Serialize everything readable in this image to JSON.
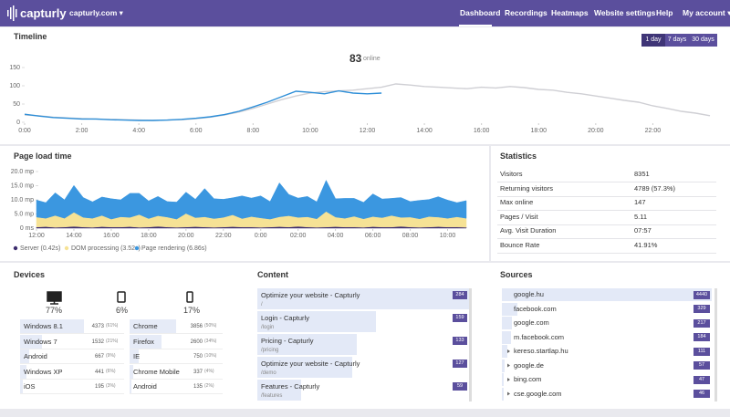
{
  "header": {
    "logo": "capturly",
    "site": "capturly.com ▾",
    "nav": [
      "Dashboard",
      "Recordings",
      "Heatmaps",
      "Website settings",
      "Help",
      "My account ▾"
    ]
  },
  "timeline": {
    "ranges": [
      "1 day",
      "7 days",
      "30 days"
    ],
    "online_count": "83",
    "online_label": "online"
  },
  "chart_data": [
    {
      "type": "line",
      "title": "Timeline",
      "x": [
        0,
        0.5,
        1,
        1.5,
        2,
        2.5,
        3,
        3.5,
        4,
        4.5,
        5,
        5.5,
        6,
        6.5,
        7,
        7.5,
        8,
        8.5,
        9,
        9.5,
        10,
        10.5,
        11,
        11.5,
        12,
        12.5,
        13,
        13.5,
        14,
        14.5,
        15,
        15.5,
        16,
        16.5,
        17,
        17.5,
        18,
        18.5,
        19,
        19.5,
        20,
        20.5,
        21,
        21.5,
        22,
        22.5,
        23,
        23.5,
        24
      ],
      "series": [
        {
          "color": "#cfcfd4",
          "values": [
            20,
            18,
            14,
            12,
            10,
            9,
            8,
            7,
            6,
            5,
            6,
            7,
            10,
            14,
            20,
            28,
            38,
            50,
            62,
            72,
            80,
            84,
            86,
            88,
            92,
            96,
            105,
            102,
            98,
            96,
            94,
            92,
            96,
            94,
            98,
            95,
            90,
            88,
            82,
            78,
            72,
            66,
            60,
            55,
            45,
            38,
            30,
            25,
            18
          ]
        },
        {
          "color": "#2f8fd8",
          "values": [
            22,
            17,
            13,
            11,
            9,
            9,
            7,
            6,
            5,
            5,
            6,
            8,
            11,
            15,
            21,
            30,
            42,
            55,
            70,
            85,
            82,
            78,
            86,
            80,
            78,
            80,
            null,
            null,
            null,
            null,
            null,
            null,
            null,
            null,
            null,
            null,
            null,
            null,
            null,
            null,
            null,
            null,
            null,
            null,
            null,
            null,
            null,
            null,
            null
          ]
        }
      ],
      "xlim": [
        0,
        24
      ],
      "xticks": [
        {
          "value": 0,
          "label": "0:00"
        },
        {
          "value": 2,
          "label": "2:00"
        },
        {
          "value": 4,
          "label": "4:00"
        },
        {
          "value": 6,
          "label": "6:00"
        },
        {
          "value": 8,
          "label": "8:00"
        },
        {
          "value": 10,
          "label": "10:00"
        },
        {
          "value": 12,
          "label": "12:00"
        },
        {
          "value": 14,
          "label": "14:00"
        },
        {
          "value": 16,
          "label": "16:00"
        },
        {
          "value": 18,
          "label": "18:00"
        },
        {
          "value": 20,
          "label": "20:00"
        },
        {
          "value": 22,
          "label": "22:00"
        }
      ],
      "ylim": [
        0,
        150
      ],
      "yticks": [
        0,
        50,
        100,
        150
      ],
      "grid": false
    },
    {
      "type": "stacked_area",
      "title": "Page load time",
      "x": [
        0,
        0.5,
        1,
        1.5,
        2,
        2.5,
        3,
        3.5,
        4,
        4.5,
        5,
        5.5,
        6,
        6.5,
        7,
        7.5,
        8,
        8.5,
        9,
        9.5,
        10,
        10.5,
        11,
        11.5,
        12,
        12.5,
        13,
        13.5,
        14,
        14.5,
        15,
        15.5,
        16,
        16.5,
        17,
        17.5,
        18,
        18.5,
        19,
        19.5,
        20,
        20.5,
        21,
        21.5,
        22,
        22.5,
        23
      ],
      "series": [
        {
          "name": "Server (0.42s)",
          "color": "#3d2d6e",
          "values": [
            0.4,
            0.5,
            0.3,
            0.4,
            0.6,
            0.4,
            0.3,
            0.5,
            0.4,
            0.4,
            0.5,
            0.3,
            0.4,
            0.6,
            0.4,
            0.3,
            0.4,
            0.5,
            0.4,
            0.3,
            0.4,
            0.5,
            0.4,
            0.4,
            0.3,
            0.4,
            0.5,
            0.4,
            0.6,
            0.4,
            0.3,
            0.4,
            0.5,
            0.4,
            0.4,
            0.3,
            0.5,
            0.4,
            0.4,
            0.6,
            0.4,
            0.3,
            0.4,
            0.5,
            0.4,
            0.4,
            0.3
          ]
        },
        {
          "name": "DOM processing (3.52s)",
          "color": "#f6e295",
          "values": [
            3.5,
            3.0,
            4.2,
            3.1,
            5.0,
            3.4,
            3.2,
            4.0,
            2.8,
            3.6,
            3.3,
            4.5,
            3.0,
            3.8,
            3.5,
            2.9,
            4.8,
            3.2,
            3.6,
            3.1,
            3.4,
            4.2,
            3.0,
            3.7,
            3.3,
            2.8,
            3.5,
            4.0,
            3.2,
            3.6,
            3.0,
            5.5,
            3.4,
            3.1,
            3.8,
            3.0,
            3.6,
            3.3,
            4.1,
            3.2,
            3.5,
            3.0,
            3.7,
            3.4,
            3.1,
            3.6,
            3.2
          ]
        },
        {
          "name": "Page rendering (6.86s)",
          "color": "#3b97e0",
          "values": [
            6.0,
            5.5,
            8.0,
            6.5,
            9.5,
            7.0,
            5.8,
            6.5,
            7.2,
            6.0,
            8.5,
            7.5,
            6.2,
            6.8,
            5.5,
            6.0,
            7.5,
            6.5,
            10.0,
            7.0,
            6.4,
            6.0,
            8.0,
            6.5,
            7.8,
            6.2,
            12.0,
            7.5,
            6.8,
            7.2,
            6.0,
            11.0,
            6.5,
            7.0,
            6.3,
            5.8,
            8.0,
            6.6,
            6.0,
            7.0,
            5.5,
            6.5,
            6.0,
            7.2,
            6.4,
            5.0,
            6.2
          ]
        }
      ],
      "xlim": [
        0,
        23
      ],
      "xticks": [
        {
          "value": 0,
          "label": "12:00"
        },
        {
          "value": 2,
          "label": "14:00"
        },
        {
          "value": 4,
          "label": "16:00"
        },
        {
          "value": 6,
          "label": "18:00"
        },
        {
          "value": 8,
          "label": "20:00"
        },
        {
          "value": 10,
          "label": "22:00"
        },
        {
          "value": 12,
          "label": "0:00"
        },
        {
          "value": 14,
          "label": "02:00"
        },
        {
          "value": 16,
          "label": "04:00"
        },
        {
          "value": 18,
          "label": "06:00"
        },
        {
          "value": 20,
          "label": "08:00"
        },
        {
          "value": 22,
          "label": "10:00"
        }
      ],
      "ylim": [
        0,
        20
      ],
      "yticks": [
        {
          "value": 0,
          "label": "0 ms"
        },
        {
          "value": 5,
          "label": "5.0 mp"
        },
        {
          "value": 10,
          "label": "10.0 mp"
        },
        {
          "value": 15,
          "label": "15.0 mp"
        },
        {
          "value": 20,
          "label": "20.0 mp"
        }
      ],
      "grid": false
    }
  ],
  "statistics": {
    "title": "Statistics",
    "rows": [
      [
        "Visitors",
        "8351"
      ],
      [
        "Returning visitors",
        "4789 (57.3%)"
      ],
      [
        "Max online",
        "147"
      ],
      [
        "Pages / Visit",
        "5.11"
      ],
      [
        "Avg. Visit Duration",
        "07:57"
      ],
      [
        "Bounce Rate",
        "41.91%"
      ]
    ]
  },
  "devices": {
    "title": "Devices",
    "shares": [
      "77%",
      "6%",
      "17%"
    ],
    "os": [
      {
        "name": "Windows 8.1",
        "count": 4373,
        "share": 61,
        "share_label": "(61%)"
      },
      {
        "name": "Windows 7",
        "count": 1532,
        "share": 21,
        "share_label": "(21%)"
      },
      {
        "name": "Android",
        "count": 667,
        "share": 9,
        "share_label": "(9%)"
      },
      {
        "name": "Windows XP",
        "count": 441,
        "share": 6,
        "share_label": "(6%)"
      },
      {
        "name": "iOS",
        "count": 195,
        "share": 3,
        "share_label": "(3%)"
      }
    ],
    "browsers": [
      {
        "name": "Chrome",
        "count": 3856,
        "share": 50,
        "share_label": "(50%)"
      },
      {
        "name": "Firefox",
        "count": 2600,
        "share": 34,
        "share_label": "(34%)"
      },
      {
        "name": "IE",
        "count": 750,
        "share": 10,
        "share_label": "(10%)"
      },
      {
        "name": "Chrome Mobile",
        "count": 337,
        "share": 4,
        "share_label": "(4%)"
      },
      {
        "name": "Android",
        "count": 135,
        "share": 2,
        "share_label": "(2%)"
      }
    ]
  },
  "content": {
    "title": "Content",
    "pages": [
      {
        "title": "Optimize your website - Capturly",
        "path": "/",
        "count": 284
      },
      {
        "title": "Login - Capturly",
        "path": "/login",
        "count": 159
      },
      {
        "title": "Pricing - Capturly",
        "path": "/pricing",
        "count": 133
      },
      {
        "title": "Optimize your website - Capturly",
        "path": "/demo",
        "count": 127
      },
      {
        "title": "Features - Capturly",
        "path": "/features",
        "count": 59
      }
    ]
  },
  "sources": {
    "title": "Sources",
    "items": [
      {
        "name": "google.hu",
        "count": 4440
      },
      {
        "name": "facebook.com",
        "count": 329
      },
      {
        "name": "google.com",
        "count": 217
      },
      {
        "name": "m.facebook.com",
        "count": 184
      },
      {
        "name": "kereso.startlap.hu",
        "count": 111
      },
      {
        "name": "google.de",
        "count": 57
      },
      {
        "name": "bing.com",
        "count": 47
      },
      {
        "name": "cse.google.com",
        "count": 46
      }
    ]
  }
}
